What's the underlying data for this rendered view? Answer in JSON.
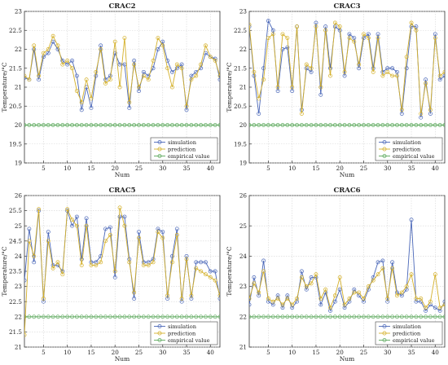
{
  "chart_data": [
    {
      "type": "line",
      "title": "CRAC2",
      "xlabel": "Num",
      "ylabel": "Temperature/°C",
      "xlim": [
        1,
        42
      ],
      "ylim": [
        19,
        23
      ],
      "xticks": [
        5,
        10,
        15,
        20,
        25,
        30,
        35,
        40
      ],
      "yticks": [
        19,
        19.5,
        20,
        20.5,
        21,
        21.5,
        22,
        22.5,
        23
      ],
      "ytick_labels": [
        "19",
        "19.5",
        "20",
        "20.5",
        "21",
        "21.5",
        "22",
        "22.5",
        "23"
      ],
      "grid": true,
      "legend_position": "bottom-right",
      "x": [
        1,
        2,
        3,
        4,
        5,
        6,
        7,
        8,
        9,
        10,
        11,
        12,
        13,
        14,
        15,
        16,
        17,
        18,
        19,
        20,
        21,
        22,
        23,
        24,
        25,
        26,
        27,
        28,
        29,
        30,
        31,
        32,
        33,
        34,
        35,
        36,
        37,
        38,
        39,
        40,
        41,
        42
      ],
      "series": [
        {
          "name": "simulation",
          "color": "#4a67b8",
          "values": [
            21.25,
            21.2,
            22.0,
            21.2,
            21.8,
            21.9,
            22.2,
            22.0,
            21.7,
            21.6,
            21.7,
            21.3,
            20.4,
            21.0,
            20.45,
            21.3,
            22.1,
            21.2,
            21.3,
            21.9,
            21.6,
            21.6,
            20.45,
            21.7,
            20.9,
            21.4,
            21.3,
            21.5,
            22.0,
            22.2,
            21.7,
            21.4,
            21.5,
            21.6,
            20.4,
            21.3,
            21.4,
            21.5,
            21.9,
            21.8,
            21.75,
            21.2
          ]
        },
        {
          "name": "prediction",
          "color": "#d4b02a",
          "values": [
            21.3,
            21.2,
            22.1,
            21.3,
            21.9,
            22.0,
            22.35,
            22.1,
            21.6,
            21.7,
            21.5,
            20.9,
            20.6,
            21.2,
            20.7,
            21.4,
            22.0,
            21.1,
            21.2,
            22.2,
            21.0,
            22.3,
            20.6,
            21.6,
            21.0,
            21.3,
            21.2,
            21.7,
            22.3,
            22.1,
            21.5,
            21.0,
            21.6,
            21.5,
            20.5,
            21.2,
            21.3,
            21.6,
            22.1,
            21.8,
            21.7,
            21.3
          ]
        },
        {
          "name": "empirical value",
          "color": "#5aa85a",
          "values": [
            20,
            20,
            20,
            20,
            20,
            20,
            20,
            20,
            20,
            20,
            20,
            20,
            20,
            20,
            20,
            20,
            20,
            20,
            20,
            20,
            20,
            20,
            20,
            20,
            20,
            20,
            20,
            20,
            20,
            20,
            20,
            20,
            20,
            20,
            20,
            20,
            20,
            20,
            20,
            20,
            20,
            20
          ]
        }
      ]
    },
    {
      "type": "line",
      "title": "CRAC3",
      "xlabel": "Num",
      "ylabel": "Temperature/°C",
      "xlim": [
        1,
        42
      ],
      "ylim": [
        19,
        23
      ],
      "xticks": [
        5,
        10,
        15,
        20,
        25,
        30,
        35,
        40
      ],
      "yticks": [
        19,
        19.5,
        20,
        20.5,
        21,
        21.5,
        22,
        22.5,
        23
      ],
      "ytick_labels": [
        "19",
        "19.5",
        "20",
        "20.5",
        "21",
        "21.5",
        "22",
        "22.5",
        "23"
      ],
      "grid": true,
      "legend_position": "bottom-right",
      "x": [
        1,
        2,
        3,
        4,
        5,
        6,
        7,
        8,
        9,
        10,
        11,
        12,
        13,
        14,
        15,
        16,
        17,
        18,
        19,
        20,
        21,
        22,
        23,
        24,
        25,
        26,
        27,
        28,
        29,
        30,
        31,
        32,
        33,
        34,
        35,
        36,
        37,
        38,
        39,
        40,
        41,
        42
      ],
      "series": [
        {
          "name": "simulation",
          "color": "#4a67b8",
          "values": [
            22.6,
            21.3,
            20.3,
            21.5,
            22.75,
            22.5,
            20.9,
            22.0,
            22.05,
            20.9,
            22.6,
            20.4,
            21.5,
            21.4,
            22.7,
            20.8,
            22.6,
            21.5,
            22.6,
            22.5,
            21.3,
            22.4,
            22.3,
            21.5,
            22.3,
            22.4,
            21.5,
            22.4,
            21.4,
            21.5,
            21.5,
            21.4,
            20.3,
            21.5,
            22.6,
            22.6,
            20.2,
            21.2,
            20.3,
            22.4,
            21.2,
            21.3
          ]
        },
        {
          "name": "prediction",
          "color": "#d4b02a",
          "values": [
            22.65,
            21.4,
            20.7,
            21.2,
            22.3,
            22.4,
            21.0,
            22.4,
            22.3,
            21.0,
            22.6,
            20.3,
            21.6,
            21.5,
            22.6,
            21.0,
            22.5,
            21.3,
            22.7,
            22.6,
            21.4,
            22.3,
            22.2,
            21.6,
            22.4,
            22.3,
            21.4,
            22.3,
            21.3,
            21.4,
            21.3,
            21.3,
            20.4,
            21.8,
            22.7,
            22.5,
            20.3,
            21.1,
            20.4,
            22.3,
            21.3,
            21.4
          ]
        },
        {
          "name": "empirical value",
          "color": "#5aa85a",
          "values": [
            20,
            20,
            20,
            20,
            20,
            20,
            20,
            20,
            20,
            20,
            20,
            20,
            20,
            20,
            20,
            20,
            20,
            20,
            20,
            20,
            20,
            20,
            20,
            20,
            20,
            20,
            20,
            20,
            20,
            20,
            20,
            20,
            20,
            20,
            20,
            20,
            20,
            20,
            20,
            20,
            20,
            20
          ]
        }
      ]
    },
    {
      "type": "line",
      "title": "CRAC5",
      "xlabel": "Num",
      "ylabel": "Temperature/°C",
      "xlim": [
        1,
        42
      ],
      "ylim": [
        21,
        26
      ],
      "xticks": [
        5,
        10,
        15,
        20,
        25,
        30,
        35,
        40
      ],
      "yticks": [
        21,
        21.5,
        22,
        22.5,
        23,
        23.5,
        24,
        24.5,
        25,
        25.5,
        26
      ],
      "ytick_labels": [
        "21",
        "21.5",
        "22",
        "22.5",
        "23",
        "23.5",
        "24",
        "24.5",
        "25",
        "25.5",
        "26"
      ],
      "grid": true,
      "legend_position": "bottom-right",
      "x": [
        1,
        2,
        3,
        4,
        5,
        6,
        7,
        8,
        9,
        10,
        11,
        12,
        13,
        14,
        15,
        16,
        17,
        18,
        19,
        20,
        21,
        22,
        23,
        24,
        25,
        26,
        27,
        28,
        29,
        30,
        31,
        32,
        33,
        34,
        35,
        36,
        37,
        38,
        39,
        40,
        41,
        42
      ],
      "series": [
        {
          "name": "simulation",
          "color": "#4a67b8",
          "values": [
            23.2,
            24.9,
            23.8,
            25.5,
            22.5,
            24.8,
            23.7,
            23.7,
            23.5,
            25.5,
            25.0,
            25.3,
            23.9,
            25.25,
            23.8,
            23.8,
            24.0,
            24.9,
            24.95,
            23.3,
            25.3,
            25.3,
            23.9,
            22.6,
            24.8,
            23.8,
            23.8,
            23.9,
            24.9,
            24.8,
            22.6,
            24.0,
            24.9,
            22.5,
            24.0,
            22.6,
            23.8,
            23.8,
            23.8,
            23.5,
            23.5,
            22.6
          ]
        },
        {
          "name": "prediction",
          "color": "#d4b02a",
          "values": [
            21.4,
            24.5,
            24.0,
            25.55,
            22.6,
            24.5,
            23.6,
            23.8,
            23.4,
            25.55,
            25.2,
            25.0,
            23.7,
            25.0,
            23.7,
            23.7,
            23.8,
            24.5,
            24.7,
            23.5,
            25.6,
            25.0,
            23.8,
            22.8,
            24.6,
            23.7,
            23.7,
            23.8,
            24.8,
            24.6,
            22.7,
            23.8,
            24.7,
            22.6,
            23.9,
            22.7,
            23.6,
            23.5,
            23.4,
            23.3,
            23.2,
            22.7
          ]
        },
        {
          "name": "empirical value",
          "color": "#5aa85a",
          "values": [
            22,
            22,
            22,
            22,
            22,
            22,
            22,
            22,
            22,
            22,
            22,
            22,
            22,
            22,
            22,
            22,
            22,
            22,
            22,
            22,
            22,
            22,
            22,
            22,
            22,
            22,
            22,
            22,
            22,
            22,
            22,
            22,
            22,
            22,
            22,
            22,
            22,
            22,
            22,
            22,
            22,
            22
          ]
        }
      ]
    },
    {
      "type": "line",
      "title": "CRAC6",
      "xlabel": "Num",
      "ylabel": "Temperature/°C",
      "xlim": [
        1,
        42
      ],
      "ylim": [
        21,
        26
      ],
      "xticks": [
        5,
        10,
        15,
        20,
        25,
        30,
        35,
        40
      ],
      "yticks": [
        21,
        22,
        23,
        24,
        25,
        26
      ],
      "ytick_labels": [
        "21",
        "22",
        "23",
        "24",
        "25",
        "26"
      ],
      "grid": true,
      "legend_position": "bottom-right",
      "x": [
        1,
        2,
        3,
        4,
        5,
        6,
        7,
        8,
        9,
        10,
        11,
        12,
        13,
        14,
        15,
        16,
        17,
        18,
        19,
        20,
        21,
        22,
        23,
        24,
        25,
        26,
        27,
        28,
        29,
        30,
        31,
        32,
        33,
        34,
        35,
        36,
        37,
        38,
        39,
        40,
        41,
        42
      ],
      "series": [
        {
          "name": "simulation",
          "color": "#4a67b8",
          "values": [
            22.4,
            23.3,
            22.7,
            23.85,
            22.5,
            22.4,
            22.7,
            22.3,
            22.7,
            22.3,
            22.5,
            23.5,
            22.9,
            23.3,
            23.3,
            22.4,
            22.8,
            22.2,
            22.5,
            22.9,
            22.3,
            22.5,
            22.9,
            22.7,
            22.5,
            22.9,
            23.3,
            23.8,
            23.85,
            22.5,
            23.8,
            22.8,
            22.7,
            22.9,
            25.2,
            22.5,
            22.5,
            22.2,
            22.4,
            22.3,
            22.2,
            22.5
          ]
        },
        {
          "name": "prediction",
          "color": "#d4b02a",
          "values": [
            22.6,
            23.1,
            22.8,
            23.5,
            22.6,
            22.5,
            22.6,
            22.4,
            22.6,
            22.4,
            22.6,
            23.3,
            23.0,
            23.1,
            23.4,
            22.6,
            22.9,
            22.3,
            22.7,
            23.3,
            22.4,
            22.6,
            22.8,
            22.8,
            22.6,
            23.0,
            23.2,
            23.4,
            23.6,
            22.6,
            23.6,
            22.7,
            22.8,
            23.0,
            23.4,
            22.6,
            22.6,
            22.3,
            22.5,
            23.4,
            22.3,
            22.4
          ]
        },
        {
          "name": "empirical value",
          "color": "#5aa85a",
          "values": [
            22,
            22,
            22,
            22,
            22,
            22,
            22,
            22,
            22,
            22,
            22,
            22,
            22,
            22,
            22,
            22,
            22,
            22,
            22,
            22,
            22,
            22,
            22,
            22,
            22,
            22,
            22,
            22,
            22,
            22,
            22,
            22,
            22,
            22,
            22,
            22,
            22,
            22,
            22,
            22,
            22,
            22
          ]
        }
      ]
    }
  ]
}
